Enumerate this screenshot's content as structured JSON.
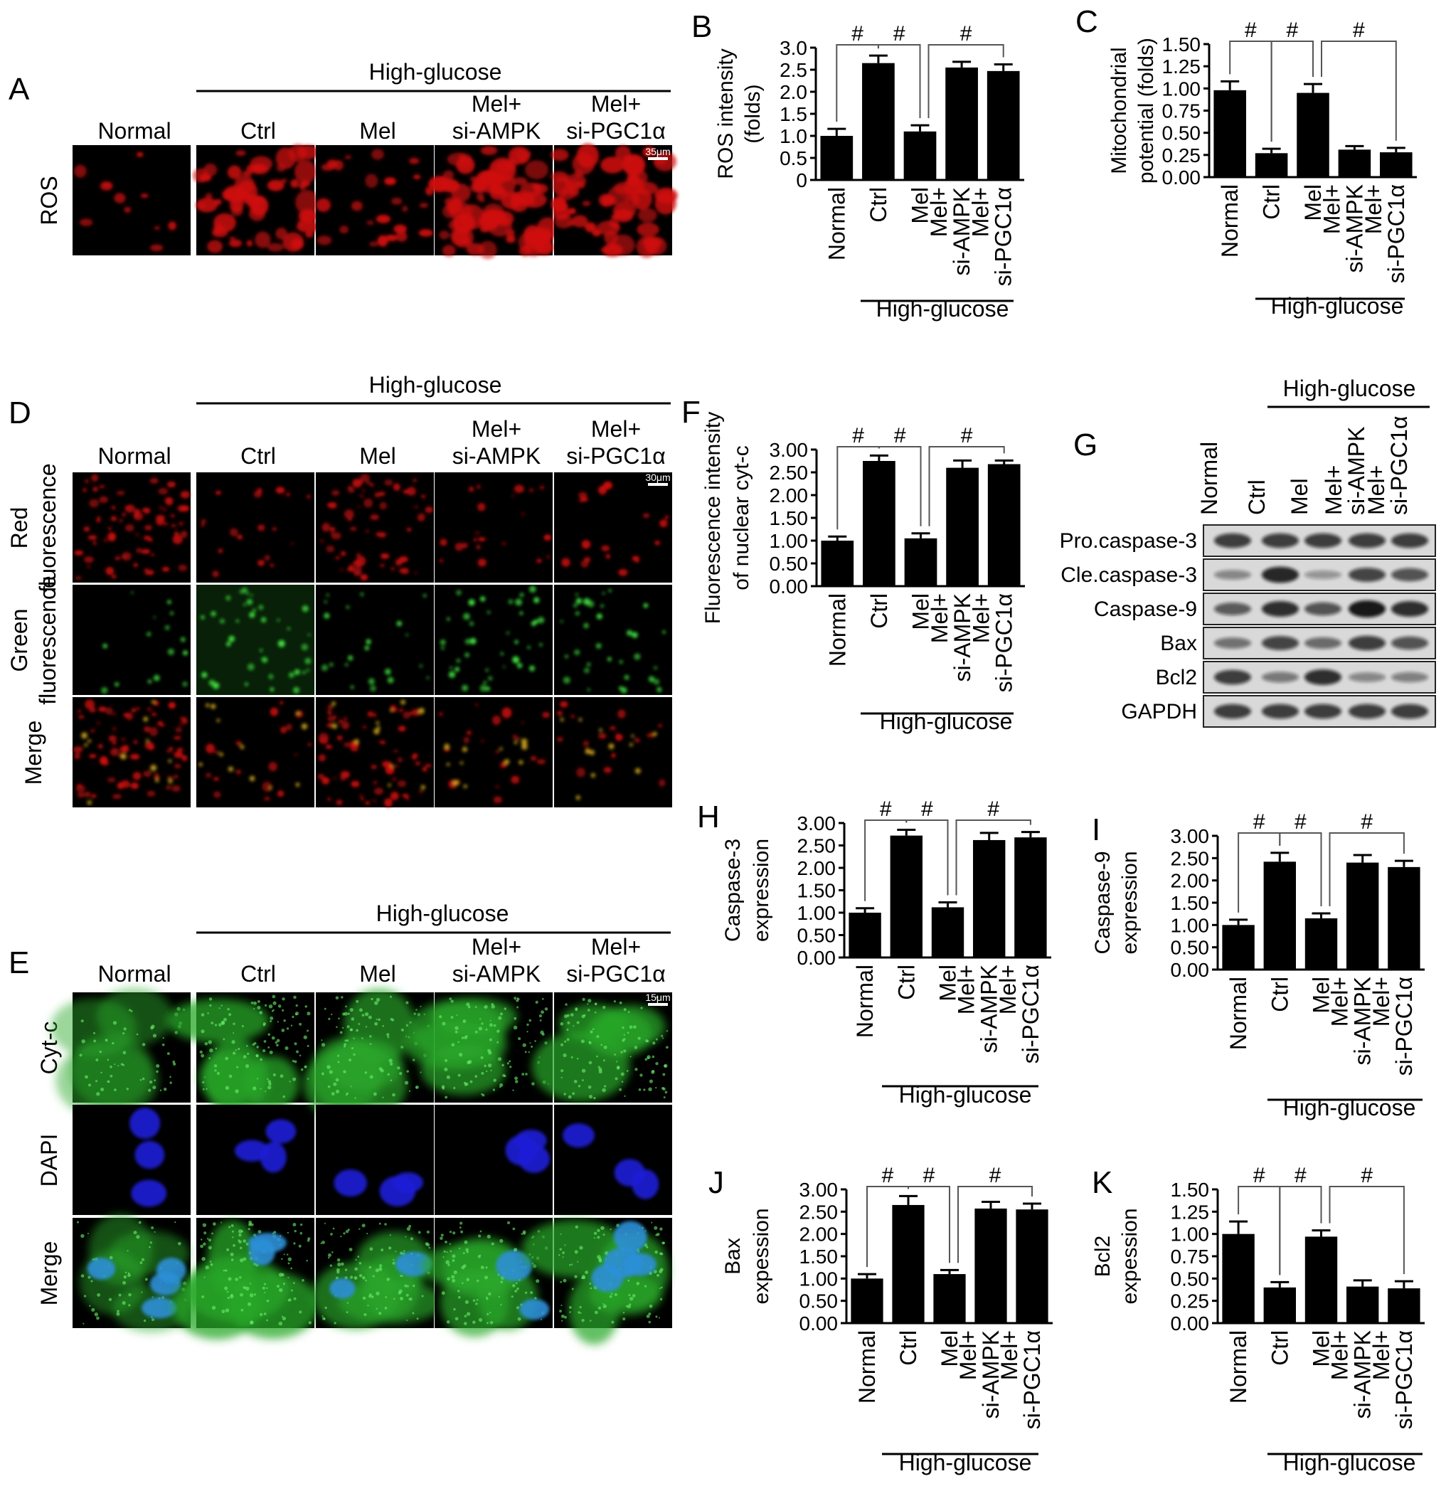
{
  "groups": [
    "Normal",
    "Ctrl",
    "Mel",
    "Mel+ si-AMPK",
    "Mel+ si-PGC1α"
  ],
  "group_lines": [
    [
      "Normal"
    ],
    [
      "Ctrl"
    ],
    [
      "Mel"
    ],
    [
      "Mel+",
      "si-AMPK"
    ],
    [
      "Mel+",
      "si-PGC1α"
    ]
  ],
  "high_glucose_label": "High-glucose",
  "sig_symbol": "#",
  "panels": {
    "A": {
      "label": "A",
      "rows": [
        "ROS"
      ],
      "scale_bar": "35μm"
    },
    "D": {
      "label": "D",
      "rows": [
        [
          "Red",
          "fluorescence"
        ],
        [
          "Green",
          "fluorescence"
        ],
        [
          "Merge"
        ]
      ],
      "scale_bar": "30μm"
    },
    "E": {
      "label": "E",
      "rows": [
        "Cyt-c",
        "DAPI",
        "Merge"
      ],
      "scale_bar": "15μm"
    },
    "G": {
      "label": "G",
      "bands": [
        "Pro.caspase-3",
        "Cle.caspase-3",
        "Caspase-9",
        "Bax",
        "Bcl2",
        "GAPDH"
      ]
    }
  },
  "colors": {
    "bar": "#000000",
    "red_stain": "#d01010",
    "green_stain": "#2aa82a",
    "blue_stain": "#1f1fd8"
  },
  "chart_data": [
    {
      "panel": "B",
      "type": "bar",
      "ylabel": [
        "ROS intensity",
        "(folds)"
      ],
      "ylim": [
        0,
        3.0
      ],
      "yticks": [
        "0",
        "0.5",
        "1.0",
        "1.5",
        "2.0",
        "2.5",
        "3.0"
      ],
      "categories": [
        "Normal",
        "Ctrl",
        "Mel",
        "Mel+ si-AMPK",
        "Mel+ si-PGC1α"
      ],
      "values": [
        1.0,
        2.65,
        1.1,
        2.55,
        2.47
      ],
      "errors": [
        0.16,
        0.17,
        0.14,
        0.13,
        0.15
      ]
    },
    {
      "panel": "C",
      "type": "bar",
      "ylabel": [
        "Mitochondrial",
        "potential (folds)"
      ],
      "ylim": [
        0,
        1.5
      ],
      "yticks": [
        "0.00",
        "0.25",
        "0.50",
        "0.75",
        "1.00",
        "1.25",
        "1.50"
      ],
      "categories": [
        "Normal",
        "Ctrl",
        "Mel",
        "Mel+ si-AMPK",
        "Mel+ si-PGC1α"
      ],
      "values": [
        0.98,
        0.27,
        0.95,
        0.31,
        0.28
      ],
      "errors": [
        0.1,
        0.05,
        0.1,
        0.04,
        0.05
      ]
    },
    {
      "panel": "F",
      "type": "bar",
      "ylabel": [
        "Fluorescence intensity",
        "of nuclear cyt-c"
      ],
      "ylim": [
        0,
        3.0
      ],
      "yticks": [
        "0.00",
        "0.50",
        "1.00",
        "1.50",
        "2.00",
        "2.50",
        "3.00"
      ],
      "categories": [
        "Normal",
        "Ctrl",
        "Mel",
        "Mel+ si-AMPK",
        "Mel+ si-PGC1α"
      ],
      "values": [
        1.0,
        2.75,
        1.05,
        2.6,
        2.68
      ],
      "errors": [
        0.09,
        0.12,
        0.11,
        0.16,
        0.08
      ]
    },
    {
      "panel": "H",
      "type": "bar",
      "ylabel": [
        "Caspase-3",
        "expression"
      ],
      "ylim": [
        0,
        3.0
      ],
      "yticks": [
        "0.00",
        "0.50",
        "1.00",
        "1.50",
        "2.00",
        "2.50",
        "3.00"
      ],
      "categories": [
        "Normal",
        "Ctrl",
        "Mel",
        "Mel+ si-AMPK",
        "Mel+ si-PGC1α"
      ],
      "values": [
        1.0,
        2.72,
        1.12,
        2.62,
        2.68
      ],
      "errors": [
        0.1,
        0.13,
        0.11,
        0.16,
        0.12
      ]
    },
    {
      "panel": "I",
      "type": "bar",
      "ylabel": [
        "Caspase-9",
        "expression"
      ],
      "ylim": [
        0,
        3.0
      ],
      "yticks": [
        "0.00",
        "0.50",
        "1.00",
        "1.50",
        "2.00",
        "2.50",
        "3.00"
      ],
      "categories": [
        "Normal",
        "Ctrl",
        "Mel",
        "Mel+ si-AMPK",
        "Mel+ si-PGC1α"
      ],
      "values": [
        1.0,
        2.42,
        1.15,
        2.4,
        2.3
      ],
      "errors": [
        0.12,
        0.2,
        0.11,
        0.17,
        0.14
      ]
    },
    {
      "panel": "J",
      "type": "bar",
      "ylabel": [
        "Bax",
        "expession"
      ],
      "ylim": [
        0,
        3.0
      ],
      "yticks": [
        "0.00",
        "0.50",
        "1.00",
        "1.50",
        "2.00",
        "2.50",
        "3.00"
      ],
      "categories": [
        "Normal",
        "Ctrl",
        "Mel",
        "Mel+ si-AMPK",
        "Mel+ si-PGC1α"
      ],
      "values": [
        1.0,
        2.65,
        1.1,
        2.57,
        2.55
      ],
      "errors": [
        0.1,
        0.2,
        0.09,
        0.15,
        0.13
      ]
    },
    {
      "panel": "K",
      "type": "bar",
      "ylabel": [
        "Bcl2",
        "expession"
      ],
      "ylim": [
        0,
        1.5
      ],
      "yticks": [
        "0.00",
        "0.25",
        "0.50",
        "0.75",
        "1.00",
        "1.25",
        "1.50"
      ],
      "categories": [
        "Normal",
        "Ctrl",
        "Mel",
        "Mel+ si-AMPK",
        "Mel+ si-PGC1α"
      ],
      "values": [
        1.0,
        0.4,
        0.97,
        0.41,
        0.39
      ],
      "errors": [
        0.14,
        0.06,
        0.07,
        0.07,
        0.08
      ]
    }
  ]
}
